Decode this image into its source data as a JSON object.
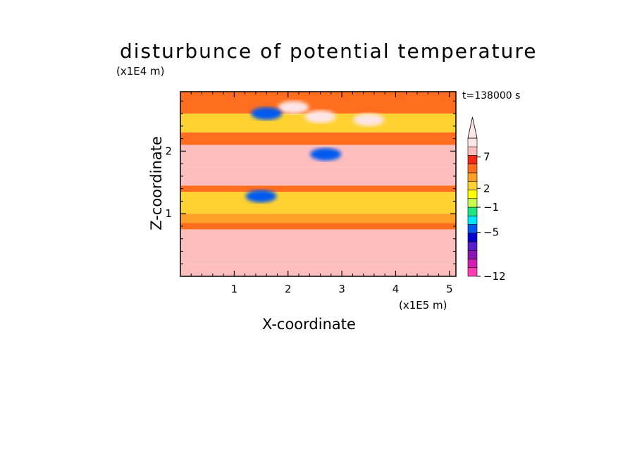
{
  "chart_data": {
    "type": "heatmap",
    "title": "disturbunce of potential temperature",
    "xlabel": "X-coordinate",
    "ylabel": "Z-coordinate",
    "x_scale_label": "(x1E5 m)",
    "y_scale_label": "(x1E4 m)",
    "timestamp": "t=138000 s",
    "xlim": [
      0,
      5.12
    ],
    "ylim": [
      0,
      2.95
    ],
    "x_ticks": [
      1,
      2,
      3,
      4,
      5
    ],
    "y_ticks": [
      1,
      2
    ],
    "x_tick_labels": [
      "1",
      "2",
      "3",
      "4",
      "5"
    ],
    "y_tick_labels": [
      "1",
      "2"
    ],
    "colorbar": {
      "levels": [
        -12,
        -11,
        -10,
        -9,
        -8,
        -7,
        -6,
        -5,
        -4,
        -3,
        -2,
        -1,
        0,
        1,
        2,
        3,
        4,
        5,
        6,
        7,
        8,
        9,
        10
      ],
      "colors": [
        "#ff3cb4",
        "#d21eb4",
        "#8c14b4",
        "#5a1ec8",
        "#0000d2",
        "#005af0",
        "#00e6ff",
        "#1ee682",
        "#c8ff50",
        "#ffff00",
        "#ffd232",
        "#ffa028",
        "#ff6e1e",
        "#f02814",
        "#ffbebe",
        "#ffe6e6"
      ],
      "labels": [
        "−12",
        "−5",
        "−1",
        "2",
        "7"
      ],
      "label_values": [
        -12,
        -5,
        -1,
        2,
        7
      ],
      "extend": "max"
    },
    "bands": [
      {
        "z": [
          0.0,
          0.2
        ],
        "value": 2
      },
      {
        "z": [
          0.2,
          0.75
        ],
        "value": 2.5
      },
      {
        "z": [
          0.75,
          0.85
        ],
        "value": 0
      },
      {
        "z": [
          0.85,
          1.0
        ],
        "value": -1
      },
      {
        "z": [
          1.0,
          1.35
        ],
        "value": -1.5
      },
      {
        "z": [
          1.35,
          1.45
        ],
        "value": 0
      },
      {
        "z": [
          1.45,
          1.75
        ],
        "value": 2
      },
      {
        "z": [
          1.75,
          2.1
        ],
        "value": 2.5
      },
      {
        "z": [
          2.1,
          2.3
        ],
        "value": 0.5
      },
      {
        "z": [
          2.3,
          2.6
        ],
        "value": -1.5
      },
      {
        "z": [
          2.6,
          2.95
        ],
        "value": 0
      }
    ],
    "features": [
      {
        "x": 2.1,
        "z": 2.7,
        "value": 5
      },
      {
        "x": 2.6,
        "z": 2.55,
        "value": 5
      },
      {
        "x": 3.5,
        "z": 2.5,
        "value": 6
      },
      {
        "x": 1.6,
        "z": 2.6,
        "value": -7
      },
      {
        "x": 2.7,
        "z": 1.95,
        "value": -7
      },
      {
        "x": 1.5,
        "z": 1.28,
        "value": -7
      }
    ]
  }
}
